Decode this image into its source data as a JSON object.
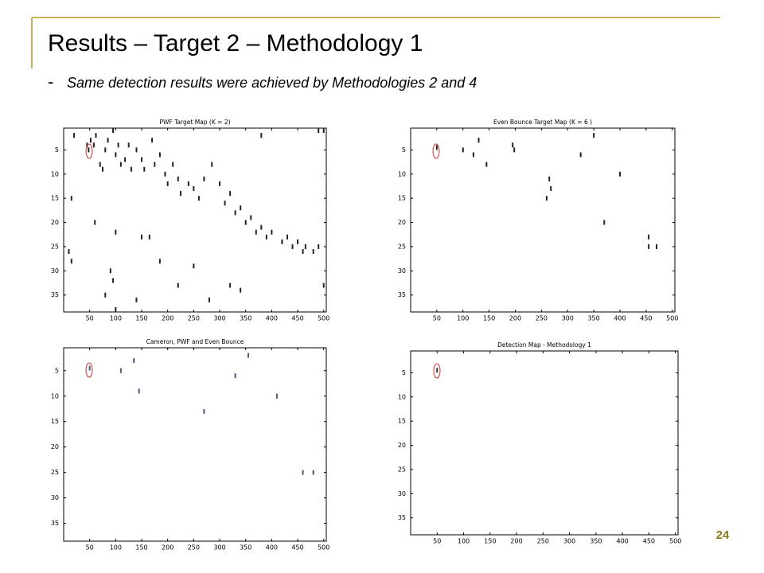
{
  "slide": {
    "title": "Results – Target 2 – Methodology 1",
    "subtitle": "Same detection results were achieved by Methodologies 2 and 4",
    "page_number": "24"
  },
  "chart_data": [
    {
      "type": "scatter",
      "title": "PWF Target Map (K = 2)",
      "color": "#222222",
      "x": [
        20,
        45,
        48,
        52,
        58,
        62,
        70,
        75,
        80,
        85,
        95,
        100,
        105,
        110,
        118,
        125,
        130,
        140,
        150,
        155,
        170,
        175,
        185,
        195,
        200,
        210,
        220,
        225,
        240,
        250,
        260,
        270,
        285,
        300,
        310,
        320,
        330,
        340,
        350,
        360,
        370,
        380,
        390,
        400,
        420,
        430,
        440,
        450,
        460,
        465,
        480,
        490,
        15,
        60,
        100,
        150,
        165,
        185,
        220,
        250,
        320,
        90,
        95,
        80,
        140,
        280,
        340,
        100,
        500,
        10,
        15,
        500,
        490,
        380
      ],
      "y": [
        2,
        4,
        5,
        3,
        4,
        2,
        8,
        9,
        5,
        3,
        1,
        6,
        4,
        8,
        7,
        4,
        9,
        5,
        7,
        9,
        3,
        8,
        6,
        10,
        12,
        8,
        11,
        14,
        12,
        13,
        15,
        11,
        8,
        12,
        16,
        14,
        18,
        17,
        20,
        19,
        22,
        21,
        23,
        22,
        24,
        23,
        25,
        24,
        26,
        25,
        26,
        25,
        15,
        20,
        22,
        23,
        23,
        28,
        33,
        29,
        33,
        30,
        32,
        35,
        36,
        36,
        34,
        38,
        33,
        26,
        28,
        1,
        1,
        2
      ],
      "xlim": [
        0,
        505
      ],
      "ylim": [
        38.5,
        0.5
      ],
      "xticks": [
        50,
        100,
        150,
        200,
        250,
        300,
        350,
        400,
        450,
        500
      ],
      "yticks": [
        5,
        10,
        15,
        20,
        25,
        30,
        35
      ]
    },
    {
      "type": "scatter",
      "title": "Even Bounce Target Map (K = 6 )",
      "color": "#222222",
      "x": [
        50,
        100,
        120,
        130,
        145,
        195,
        198,
        260,
        265,
        268,
        325,
        350,
        400,
        370,
        455,
        455,
        470
      ],
      "y": [
        4.5,
        5,
        6,
        3,
        8,
        4,
        5,
        15,
        11,
        13,
        6,
        2,
        10,
        20,
        23,
        25,
        25
      ],
      "xlim": [
        0,
        505
      ],
      "ylim": [
        38.5,
        0.5
      ],
      "xticks": [
        50,
        100,
        150,
        200,
        250,
        300,
        350,
        400,
        450,
        500
      ],
      "yticks": [
        5,
        10,
        15,
        20,
        25,
        30,
        35
      ]
    },
    {
      "type": "scatter",
      "title": "Cameron, PWF and Even Bounce",
      "color": "#4a5a7a",
      "x": [
        50,
        110,
        135,
        145,
        270,
        330,
        355,
        410,
        460,
        480
      ],
      "y": [
        4.5,
        5,
        3,
        9,
        13,
        6,
        2,
        10,
        25,
        25
      ],
      "xlim": [
        0,
        505
      ],
      "ylim": [
        38.5,
        0.5
      ],
      "xticks": [
        50,
        100,
        150,
        200,
        250,
        300,
        350,
        400,
        450,
        500
      ],
      "yticks": [
        5,
        10,
        15,
        20,
        25,
        30,
        35
      ]
    },
    {
      "type": "scatter",
      "title": "Detection Map - Methodology 1",
      "color": "#333333",
      "x": [
        50
      ],
      "y": [
        4.5
      ],
      "xlim": [
        0,
        505
      ],
      "ylim": [
        38.5,
        0.5
      ],
      "xticks": [
        50,
        100,
        150,
        200,
        250,
        300,
        350,
        400,
        450,
        500
      ],
      "yticks": [
        5,
        10,
        15,
        20,
        25,
        30,
        35
      ]
    }
  ]
}
